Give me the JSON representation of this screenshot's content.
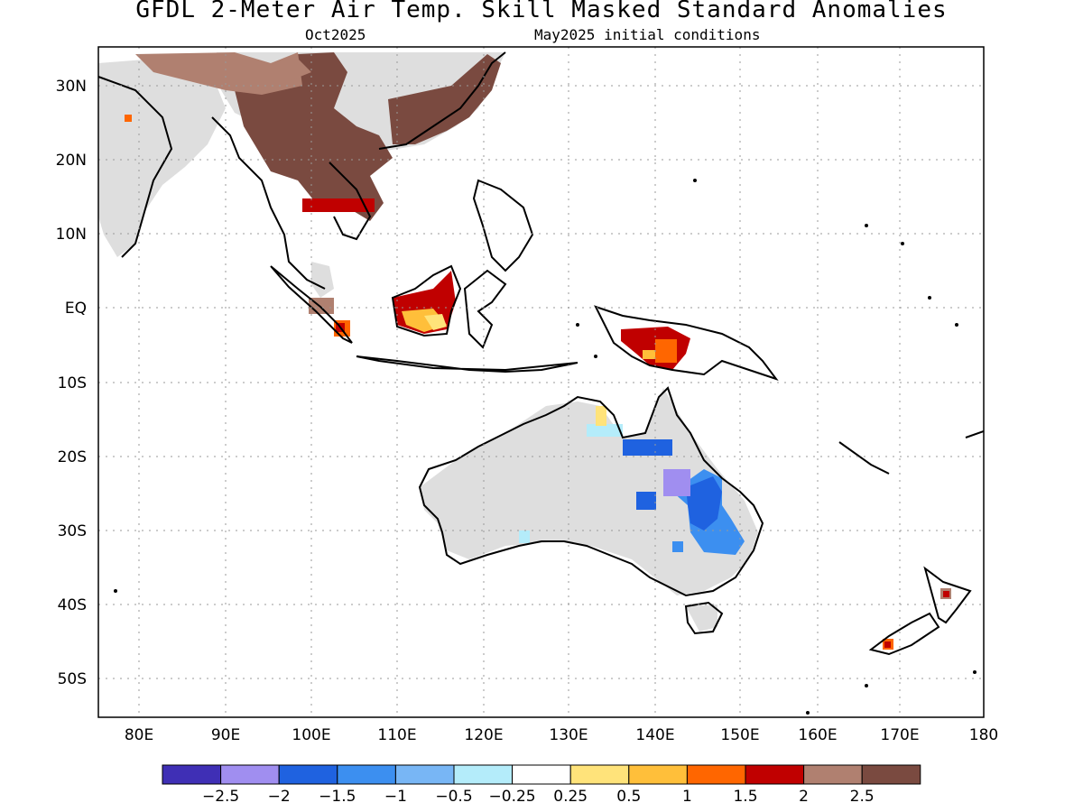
{
  "title": "GFDL 2-Meter Air Temp. Skill Masked Standard Anomalies",
  "subtitle_left": "Oct2025",
  "subtitle_right": "May2025 initial conditions",
  "lat_labels": [
    "30N",
    "20N",
    "10N",
    "EQ",
    "10S",
    "20S",
    "30S",
    "40S",
    "50S"
  ],
  "lon_labels": [
    "80E",
    "90E",
    "100E",
    "110E",
    "120E",
    "130E",
    "140E",
    "150E",
    "160E",
    "170E",
    "180"
  ],
  "colorbar": {
    "colors": [
      "#3f2fb5",
      "#a08ef0",
      "#1f62e0",
      "#3c8ff0",
      "#78b6f5",
      "#b4ecfa",
      "#ffffff",
      "#ffe37a",
      "#ffbf3a",
      "#ff6600",
      "#c00000",
      "#b08070",
      "#7a4a40"
    ],
    "labels": [
      "-2.5",
      "-2",
      "-1.5",
      "-1",
      "-0.5",
      "-0.25",
      "0.25",
      "0.5",
      "1",
      "1.5",
      "2",
      "2.5"
    ]
  },
  "colors": {
    "no_skill": "#dedede",
    "warm_high": "#7a4a40",
    "warm_mid": "#b08070",
    "red": "#c00000",
    "orange": "#ff6600",
    "amber": "#ffbf3a",
    "yellow": "#ffe37a",
    "blue": "#3c8ff0",
    "dark_blue": "#1f62e0",
    "purple": "#a08ef0",
    "cyan": "#b4ecfa"
  }
}
